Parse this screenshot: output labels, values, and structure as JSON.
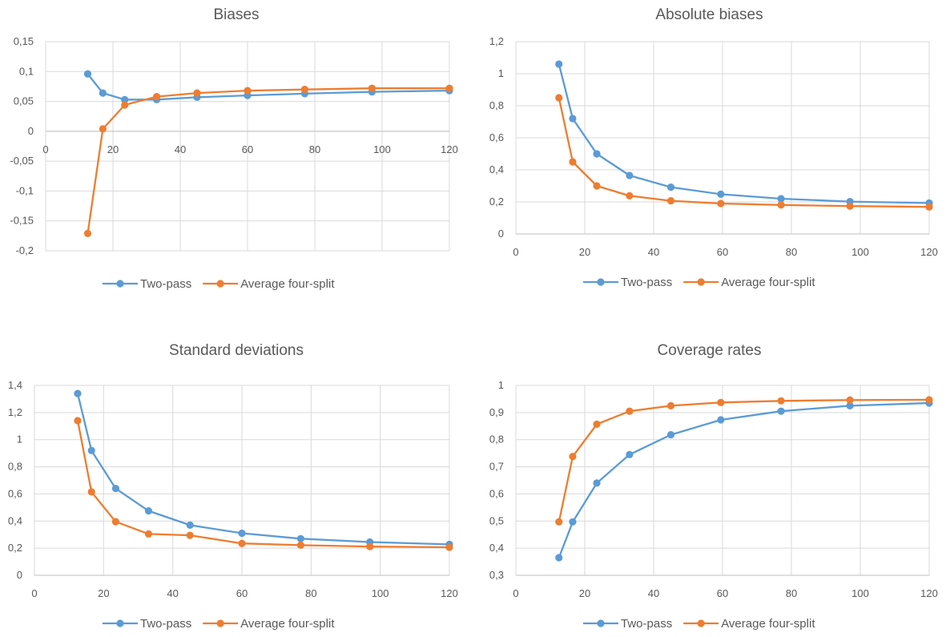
{
  "colors": {
    "two_pass": "#5B9BD5",
    "four_split": "#ED7D31",
    "grid": "#D9D9D9",
    "text": "#595959"
  },
  "chart_data": [
    {
      "type": "line",
      "title": "Biases",
      "x": [
        12.5,
        17,
        23.5,
        33,
        45,
        60,
        77,
        97,
        120
      ],
      "xticks": [
        "0",
        "20",
        "40",
        "60",
        "80",
        "100",
        "120"
      ],
      "yticks": [
        "-0,2",
        "-0,15",
        "-0,1",
        "-0,05",
        "0",
        "0,05",
        "0,1",
        "0,15"
      ],
      "xlim": [
        0,
        120
      ],
      "ylim": [
        -0.2,
        0.15
      ],
      "grid": true,
      "legend": "bottom",
      "x_axis_at_zero": true,
      "series": [
        {
          "name": "Two-pass",
          "values": [
            0.096,
            0.064,
            0.053,
            0.053,
            0.057,
            0.06,
            0.063,
            0.066,
            0.068
          ]
        },
        {
          "name": "Average four-split",
          "values": [
            -0.171,
            0.004,
            0.044,
            0.058,
            0.064,
            0.068,
            0.07,
            0.072,
            0.072
          ]
        }
      ]
    },
    {
      "type": "line",
      "title": "Absolute biases",
      "x": [
        12.5,
        16.5,
        23.5,
        33,
        45,
        59.5,
        77,
        97,
        120
      ],
      "xticks": [
        "0",
        "20",
        "40",
        "60",
        "80",
        "100",
        "120"
      ],
      "yticks": [
        "0",
        "0,2",
        "0,4",
        "0,6",
        "0,8",
        "1",
        "1,2"
      ],
      "xlim": [
        0,
        120
      ],
      "ylim": [
        0,
        1.2
      ],
      "grid": true,
      "legend": "bottom",
      "x_axis_at_zero": false,
      "series": [
        {
          "name": "Two-pass",
          "values": [
            1.06,
            0.72,
            0.5,
            0.365,
            0.292,
            0.248,
            0.22,
            0.202,
            0.193
          ]
        },
        {
          "name": "Average four-split",
          "values": [
            0.85,
            0.45,
            0.3,
            0.238,
            0.207,
            0.19,
            0.181,
            0.174,
            0.169
          ]
        }
      ]
    },
    {
      "type": "line",
      "title": "Standard deviations",
      "x": [
        12.5,
        16.5,
        23.5,
        33,
        45,
        60,
        77,
        97,
        120
      ],
      "xticks": [
        "0",
        "20",
        "40",
        "60",
        "80",
        "100",
        "120"
      ],
      "yticks": [
        "0",
        "0,2",
        "0,4",
        "0,6",
        "0,8",
        "1",
        "1,2",
        "1,4"
      ],
      "xlim": [
        0,
        120
      ],
      "ylim": [
        0,
        1.4
      ],
      "grid": true,
      "legend": "bottom",
      "x_axis_at_zero": false,
      "series": [
        {
          "name": "Two-pass",
          "values": [
            1.34,
            0.92,
            0.64,
            0.475,
            0.37,
            0.31,
            0.27,
            0.245,
            0.228
          ]
        },
        {
          "name": "Average four-split",
          "values": [
            1.14,
            0.615,
            0.395,
            0.305,
            0.295,
            0.235,
            0.222,
            0.212,
            0.207
          ]
        }
      ]
    },
    {
      "type": "line",
      "title": "Coverage rates",
      "x": [
        12.5,
        16.5,
        23.5,
        33,
        45,
        59.5,
        77,
        97,
        120
      ],
      "xticks": [
        "0",
        "20",
        "40",
        "60",
        "80",
        "100",
        "120"
      ],
      "yticks": [
        "0,3",
        "0,4",
        "0,5",
        "0,6",
        "0,7",
        "0,8",
        "0,9",
        "1"
      ],
      "xlim": [
        0,
        120
      ],
      "ylim": [
        0.3,
        1.0
      ],
      "grid": true,
      "legend": "bottom",
      "x_axis_at_zero": false,
      "series": [
        {
          "name": "Two-pass",
          "values": [
            0.365,
            0.497,
            0.64,
            0.745,
            0.818,
            0.873,
            0.905,
            0.925,
            0.935
          ]
        },
        {
          "name": "Average four-split",
          "values": [
            0.497,
            0.738,
            0.857,
            0.905,
            0.925,
            0.937,
            0.943,
            0.946,
            0.947
          ]
        }
      ]
    }
  ]
}
